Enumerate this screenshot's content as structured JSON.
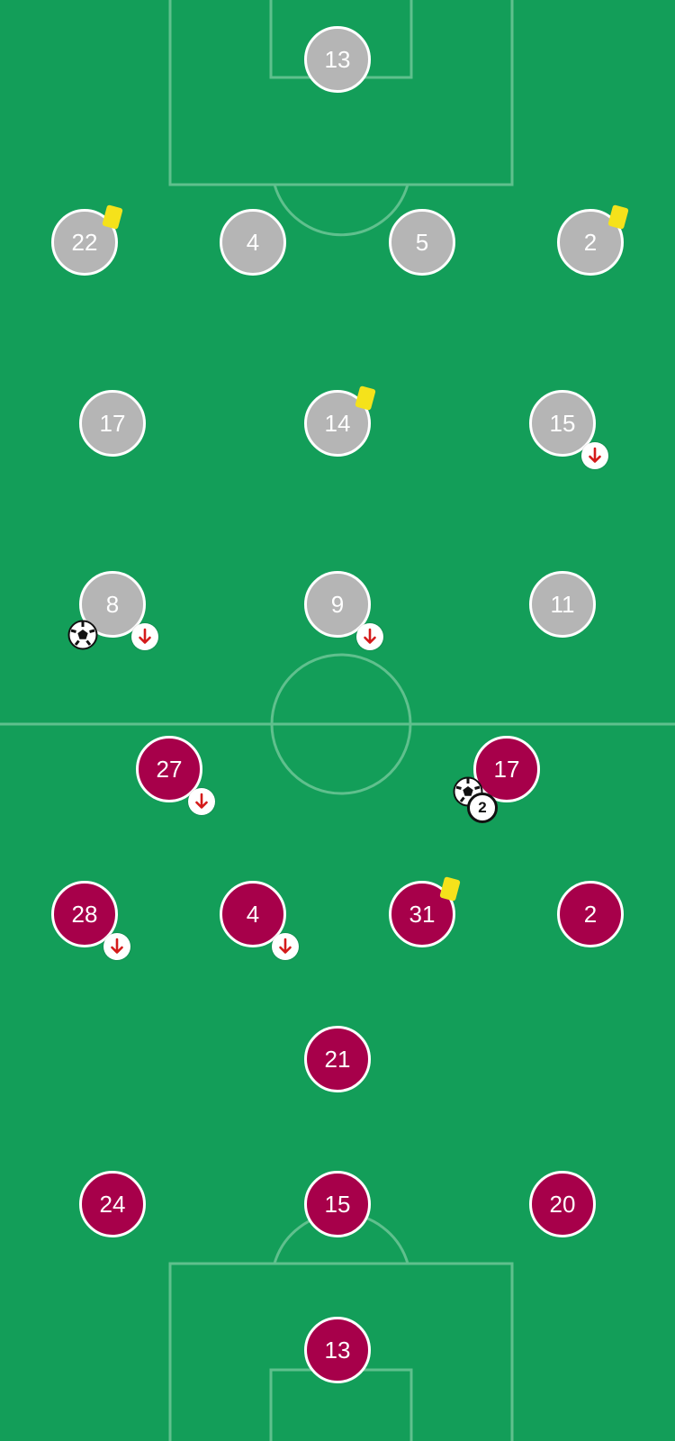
{
  "colors": {
    "pitch": "#139e59",
    "line": "#5fc08d",
    "away": "#b5b5b5",
    "home": "#a7004a",
    "card": "#f5e21b",
    "sub_arrow": "#d41a1a"
  },
  "away_players": [
    {
      "number": "13",
      "yellow_card": false,
      "sub_off": false,
      "goals": 0
    },
    {
      "number": "22",
      "yellow_card": true,
      "sub_off": false,
      "goals": 0
    },
    {
      "number": "4",
      "yellow_card": false,
      "sub_off": false,
      "goals": 0
    },
    {
      "number": "5",
      "yellow_card": false,
      "sub_off": false,
      "goals": 0
    },
    {
      "number": "2",
      "yellow_card": true,
      "sub_off": false,
      "goals": 0
    },
    {
      "number": "17",
      "yellow_card": false,
      "sub_off": false,
      "goals": 0
    },
    {
      "number": "14",
      "yellow_card": true,
      "sub_off": false,
      "goals": 0
    },
    {
      "number": "15",
      "yellow_card": false,
      "sub_off": true,
      "goals": 0
    },
    {
      "number": "8",
      "yellow_card": false,
      "sub_off": true,
      "goals": 1
    },
    {
      "number": "9",
      "yellow_card": false,
      "sub_off": true,
      "goals": 0
    },
    {
      "number": "11",
      "yellow_card": false,
      "sub_off": false,
      "goals": 0
    }
  ],
  "home_players": [
    {
      "number": "27",
      "yellow_card": false,
      "sub_off": true,
      "goals": 0
    },
    {
      "number": "17",
      "yellow_card": false,
      "sub_off": false,
      "goals": 2,
      "goal_count_label": "2"
    },
    {
      "number": "28",
      "yellow_card": false,
      "sub_off": true,
      "goals": 0
    },
    {
      "number": "4",
      "yellow_card": false,
      "sub_off": true,
      "goals": 0
    },
    {
      "number": "31",
      "yellow_card": true,
      "sub_off": false,
      "goals": 0
    },
    {
      "number": "2",
      "yellow_card": false,
      "sub_off": false,
      "goals": 0
    },
    {
      "number": "21",
      "yellow_card": false,
      "sub_off": false,
      "goals": 0
    },
    {
      "number": "24",
      "yellow_card": false,
      "sub_off": false,
      "goals": 0
    },
    {
      "number": "15",
      "yellow_card": false,
      "sub_off": false,
      "goals": 0
    },
    {
      "number": "20",
      "yellow_card": false,
      "sub_off": false,
      "goals": 0
    },
    {
      "number": "13",
      "yellow_card": false,
      "sub_off": false,
      "goals": 0
    }
  ]
}
